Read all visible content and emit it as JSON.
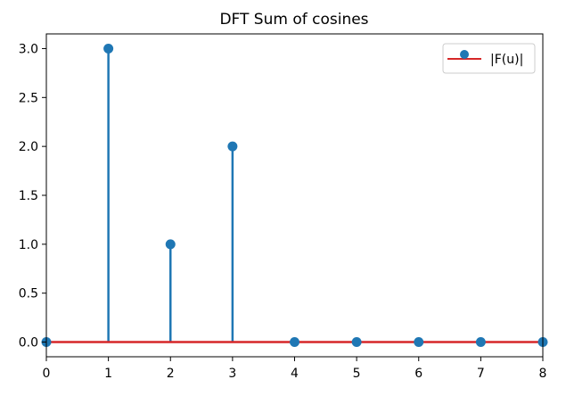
{
  "chart_data": {
    "type": "stem",
    "title": "DFT Sum of cosines",
    "xlabel": "",
    "ylabel": "",
    "xlim": [
      0,
      8
    ],
    "ylim": [
      -0.15,
      3.15
    ],
    "x_ticks": [
      0,
      1,
      2,
      3,
      4,
      5,
      6,
      7,
      8
    ],
    "x_tick_labels": [
      "0",
      "1",
      "2",
      "3",
      "4",
      "5",
      "6",
      "7",
      "8"
    ],
    "y_ticks": [
      0.0,
      0.5,
      1.0,
      1.5,
      2.0,
      2.5,
      3.0
    ],
    "y_tick_labels": [
      "0.0",
      "0.5",
      "1.0",
      "1.5",
      "2.0",
      "2.5",
      "3.0"
    ],
    "grid": false,
    "legend_position": "top-right",
    "series": [
      {
        "name": "|F(u)|",
        "x": [
          0,
          1,
          2,
          3,
          4,
          5,
          6,
          7,
          8
        ],
        "values": [
          0,
          3,
          1,
          2,
          0,
          0,
          0,
          0,
          0
        ]
      }
    ],
    "colors": {
      "marker": "#1f77b4",
      "stem": "#1f77b4",
      "baseline": "#d62728"
    }
  }
}
